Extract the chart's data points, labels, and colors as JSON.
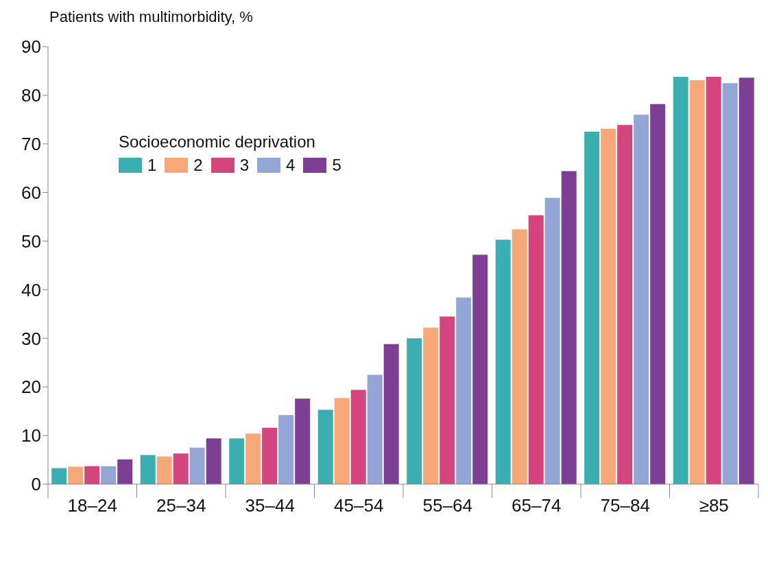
{
  "chart_data": {
    "type": "bar",
    "ylabel": "Patients with multimorbidity, %",
    "legend_title": "Socioeconomic deprivation",
    "categories": [
      "18–24",
      "25–34",
      "35–44",
      "45–54",
      "55–64",
      "65–74",
      "75–84",
      "≥85"
    ],
    "series": [
      {
        "name": "1",
        "color": "#3aaeb0",
        "values": [
          3.3,
          6.0,
          9.4,
          15.3,
          30.0,
          50.3,
          72.5,
          83.8
        ]
      },
      {
        "name": "2",
        "color": "#f7a878",
        "values": [
          3.6,
          5.7,
          10.4,
          17.7,
          32.2,
          52.4,
          73.1,
          83.1
        ]
      },
      {
        "name": "3",
        "color": "#d4457e",
        "values": [
          3.7,
          6.3,
          11.6,
          19.4,
          34.5,
          55.3,
          73.9,
          83.8
        ]
      },
      {
        "name": "4",
        "color": "#93a6d6",
        "values": [
          3.7,
          7.5,
          14.2,
          22.5,
          38.4,
          58.9,
          76.0,
          82.5
        ]
      },
      {
        "name": "5",
        "color": "#7c3f94",
        "values": [
          5.1,
          9.4,
          17.6,
          28.8,
          47.2,
          64.4,
          78.2,
          83.6
        ]
      }
    ],
    "ylim": [
      0,
      90
    ],
    "yticks": [
      0,
      10,
      20,
      30,
      40,
      50,
      60,
      70,
      80,
      90
    ],
    "grid": false,
    "legend": "top left"
  }
}
